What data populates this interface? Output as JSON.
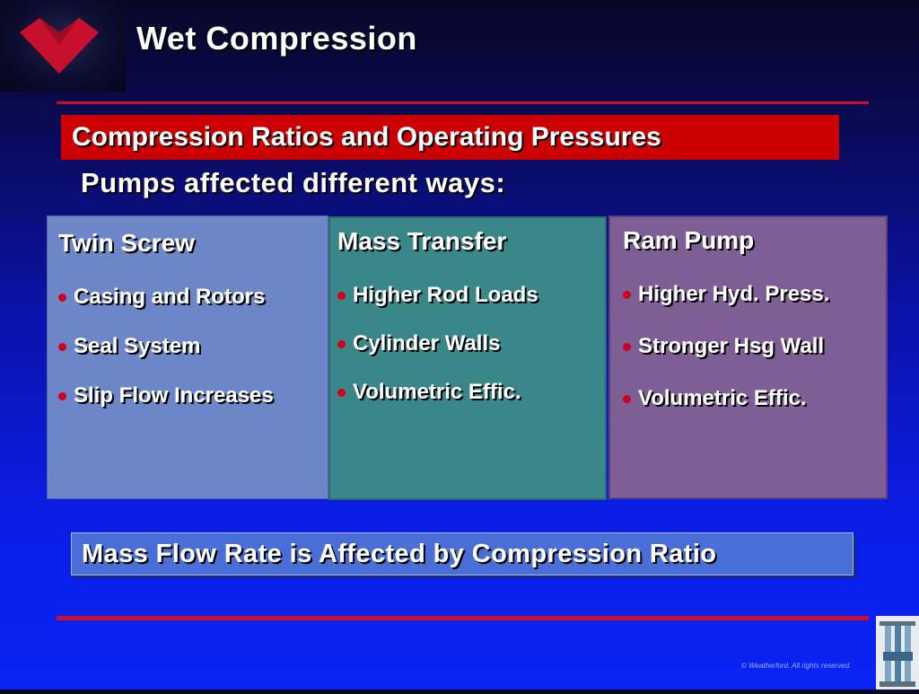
{
  "title": "Wet Compression",
  "subtitle": "Compression Ratios and Operating Pressures",
  "intro": "Pumps affected different ways:",
  "columns": [
    {
      "heading": "Twin Screw",
      "items": [
        "Casing and Rotors",
        "Seal System",
        "Slip Flow Increases"
      ]
    },
    {
      "heading": "Mass Transfer",
      "items": [
        "Higher Rod Loads",
        "Cylinder Walls",
        "Volumetric Effic."
      ]
    },
    {
      "heading": "Ram Pump",
      "items": [
        "Higher Hyd. Press.",
        "Stronger Hsg Wall",
        "Volumetric Effic."
      ]
    }
  ],
  "conclusion": "Mass Flow Rate is Affected by Compression Ratio",
  "footer": {
    "copyright": "© Weatherford. All rights reserved."
  },
  "colors": {
    "accent_red": "#cc0000",
    "rule_red": "#c8102e",
    "twin_screw_panel": "#6c86c8",
    "mass_transfer_panel": "#3a878a",
    "ram_pump_panel": "#7d5e95",
    "conclusion_panel": "#4a6ed8"
  },
  "icons": {
    "logo": "weatherford-logo-icon",
    "thumbnail": "pump-equipment-icon",
    "bullet": "bullet-dot-icon"
  }
}
